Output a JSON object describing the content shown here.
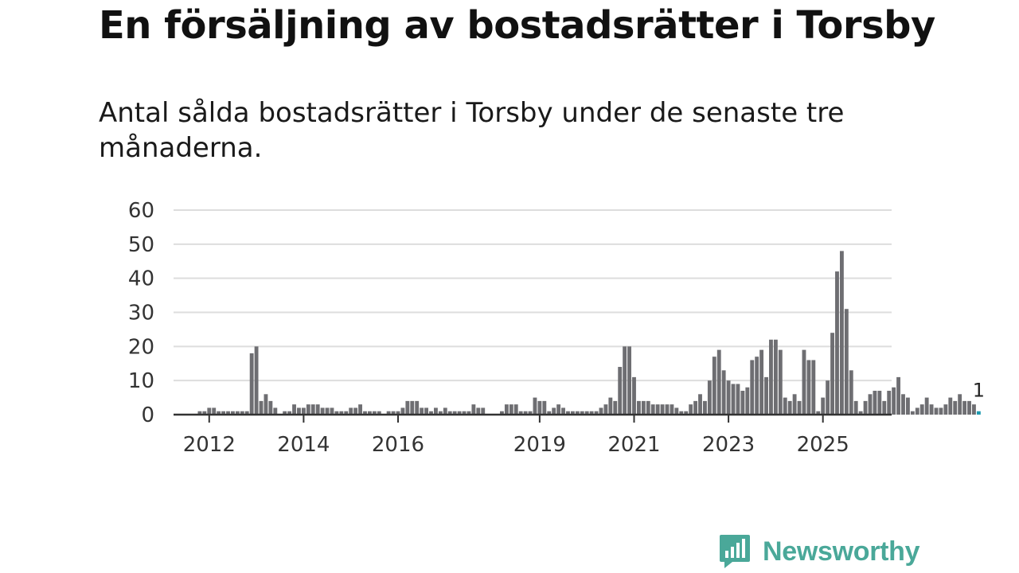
{
  "header": {
    "title": "En försäljning av bostadsrätter i Torsby",
    "subtitle": "Antal sålda bostadsrätter i Torsby under de senaste tre månaderna."
  },
  "branding": {
    "name": "Newsworthy",
    "color": "#4aa899",
    "icon": "newsworthy-logo-icon"
  },
  "colors": {
    "bar": "#6e6e72",
    "highlight": "#1f9bb0",
    "grid": "#dddddd",
    "axis": "#333333"
  },
  "chart_data": {
    "type": "bar",
    "title": "Antal sålda bostadsrätter i Torsby",
    "xlabel": "",
    "ylabel": "",
    "ylim": [
      0,
      60
    ],
    "yticks": [
      0,
      10,
      20,
      30,
      40,
      50,
      60
    ],
    "grid": true,
    "xticks": [
      {
        "label": "2012",
        "index": 3
      },
      {
        "label": "2014",
        "index": 23
      },
      {
        "label": "2016",
        "index": 43
      },
      {
        "label": "2019",
        "index": 73
      },
      {
        "label": "2021",
        "index": 93
      },
      {
        "label": "2023",
        "index": 113
      },
      {
        "label": "2025",
        "index": 133
      }
    ],
    "values": [
      0,
      1,
      1,
      2,
      2,
      1,
      1,
      1,
      1,
      1,
      1,
      1,
      18,
      20,
      4,
      6,
      4,
      2,
      0,
      1,
      1,
      3,
      2,
      2,
      3,
      3,
      3,
      2,
      2,
      2,
      1,
      1,
      1,
      2,
      2,
      3,
      1,
      1,
      1,
      1,
      0,
      1,
      1,
      1,
      2,
      4,
      4,
      4,
      2,
      2,
      1,
      2,
      1,
      2,
      1,
      1,
      1,
      1,
      1,
      3,
      2,
      2,
      0,
      0,
      0,
      1,
      3,
      3,
      3,
      1,
      1,
      1,
      5,
      4,
      4,
      1,
      2,
      3,
      2,
      1,
      1,
      1,
      1,
      1,
      1,
      1,
      2,
      3,
      5,
      4,
      14,
      20,
      20,
      11,
      4,
      4,
      4,
      3,
      3,
      3,
      3,
      3,
      2,
      1,
      1,
      3,
      4,
      6,
      4,
      10,
      17,
      19,
      13,
      10,
      9,
      9,
      7,
      8,
      16,
      17,
      19,
      11,
      22,
      22,
      19,
      5,
      4,
      6,
      4,
      19,
      16,
      16,
      1,
      5,
      10,
      24,
      42,
      48,
      31,
      13,
      4,
      1,
      4,
      6,
      7,
      7,
      4,
      7,
      8,
      11,
      6,
      5,
      1,
      2,
      3,
      5,
      3,
      2,
      2,
      3,
      5,
      4,
      6,
      4,
      4,
      3,
      1
    ],
    "highlight_last": true,
    "annotations": [
      {
        "index": "last",
        "text": "1"
      }
    ]
  }
}
